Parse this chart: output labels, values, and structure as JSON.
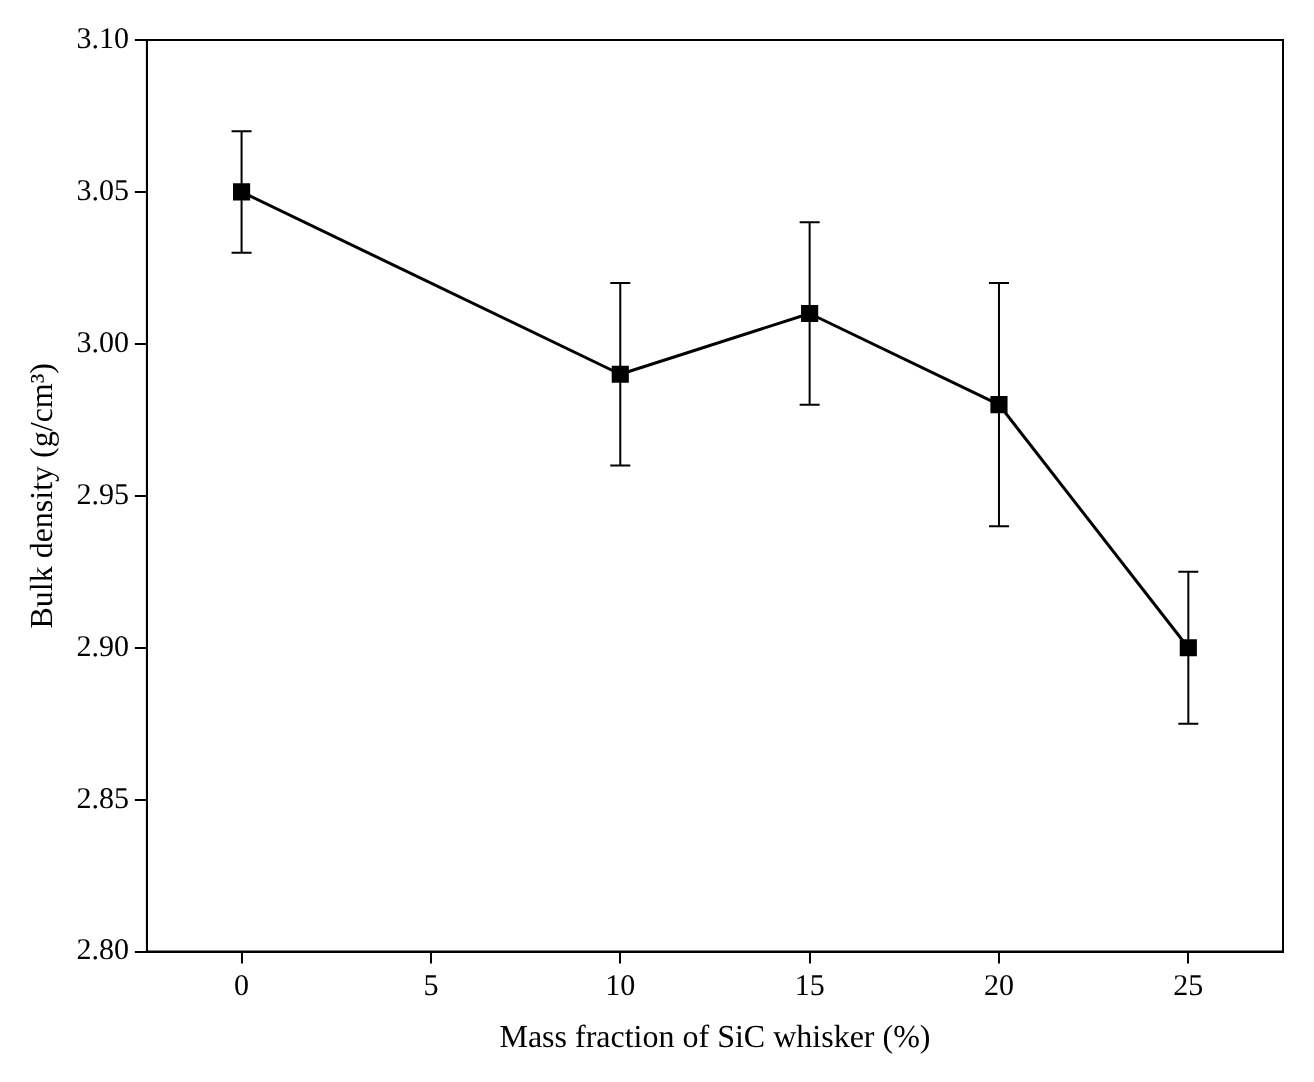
{
  "chart_data": {
    "type": "line",
    "xlabel": "Mass fraction of SiC whisker (%)",
    "ylabel": "Bulk density (g/cm³)",
    "x": [
      0,
      10,
      15,
      20,
      25
    ],
    "series": [
      {
        "color": "#000000",
        "values": [
          3.05,
          2.99,
          3.01,
          2.98,
          2.9
        ],
        "errors": [
          0.02,
          0.03,
          0.03,
          0.04,
          0.025
        ]
      }
    ],
    "xlim": [
      -2.5,
      27.5
    ],
    "xticks": [
      0,
      5,
      10,
      15,
      20,
      25
    ],
    "ylim": [
      2.8,
      3.1
    ],
    "yticks": [
      {
        "value": 2.8,
        "label": "2.80"
      },
      {
        "value": 2.85,
        "label": "2.85"
      },
      {
        "value": 2.9,
        "label": "2.90"
      },
      {
        "value": 2.95,
        "label": "2.95"
      },
      {
        "value": 3.0,
        "label": "3.00"
      },
      {
        "value": 3.05,
        "label": "3.05"
      },
      {
        "value": 3.1,
        "label": "3.10"
      }
    ],
    "grid": false,
    "legend": false,
    "marker": "square",
    "line_style": "solid"
  }
}
